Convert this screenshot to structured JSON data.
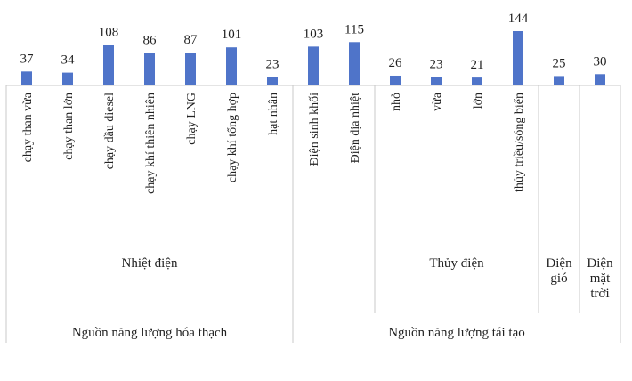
{
  "chart_data": {
    "type": "bar",
    "title": "",
    "xlabel": "",
    "ylabel": "",
    "ylim": [
      0,
      150
    ],
    "grid": false,
    "legend": "none",
    "bar_color": "#4f74c9",
    "categories": [
      "chạy than vừa",
      "chạy than lớn",
      "chạy dầu diesel",
      "chạy khí thiên nhiên",
      "chạy LNG",
      "chạy khí tổng hợp",
      "hạt nhân",
      "Điện sinh khối",
      "Điện địa nhiệt",
      "nhỏ",
      "vừa",
      "lớn",
      "thủy triều/sóng biển",
      "",
      ""
    ],
    "values": [
      37,
      34,
      108,
      86,
      87,
      101,
      23,
      103,
      115,
      26,
      23,
      21,
      144,
      25,
      30
    ],
    "groups_level1": [
      {
        "label": "Nhiệt điện",
        "count": 7
      },
      {
        "label": "",
        "count": 2
      },
      {
        "label": "Thủy điện",
        "count": 4
      },
      {
        "label": "Điện gió",
        "count": 1
      },
      {
        "label": "Điện mặt trời",
        "count": 1
      }
    ],
    "groups_level2": [
      {
        "label": "Nguồn năng lượng hóa thạch",
        "count": 7
      },
      {
        "label": "Nguồn năng lượng tái tạo",
        "count": 8
      }
    ]
  }
}
